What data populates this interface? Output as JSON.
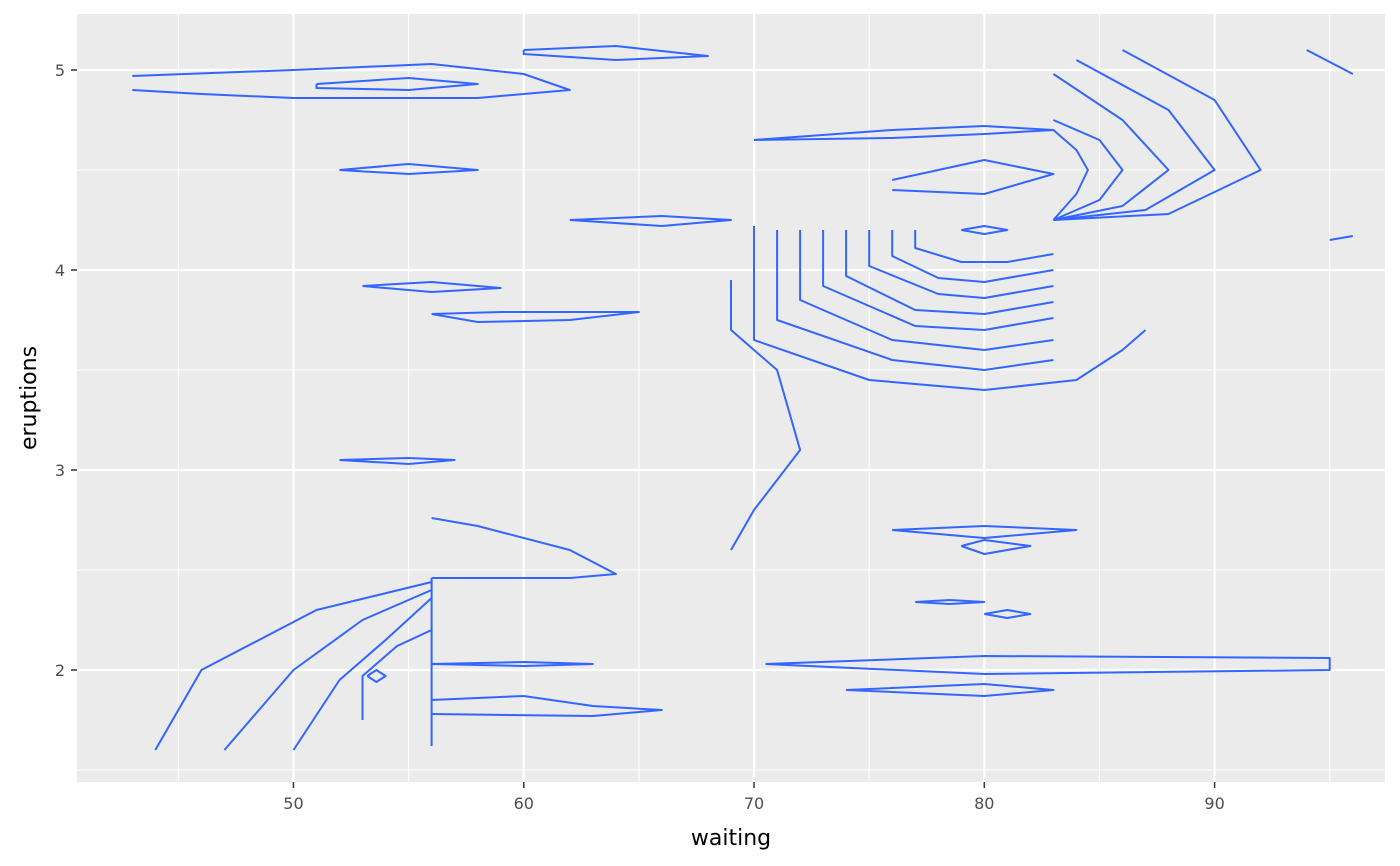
{
  "chart_data": {
    "type": "contour",
    "title": "",
    "xlabel": "waiting",
    "ylabel": "eruptions",
    "xlim": [
      40.6,
      97.4
    ],
    "ylim": [
      1.44,
      5.28
    ],
    "x_ticks": [
      50,
      60,
      70,
      80,
      90
    ],
    "x_tick_labels": [
      "50",
      "60",
      "70",
      "80",
      "90"
    ],
    "y_ticks": [
      2,
      3,
      4,
      5
    ],
    "y_tick_labels": [
      "2",
      "3",
      "4",
      "5"
    ],
    "grid": true,
    "legend": "none",
    "line_color": "#3366FF",
    "panel_background": "#EBEBEB",
    "grid_color": "#FFFFFF",
    "modes": [
      {
        "waiting": 54.5,
        "eruptions": 1.97
      },
      {
        "waiting": 80.0,
        "eruptions": 4.4
      }
    ],
    "series": [
      {
        "points": [
          [
            43,
            4.97
          ],
          [
            50,
            5.0
          ],
          [
            56,
            5.03
          ],
          [
            60,
            4.98
          ],
          [
            62,
            4.9
          ],
          [
            58,
            4.86
          ],
          [
            50,
            4.86
          ],
          [
            46,
            4.88
          ],
          [
            43,
            4.9
          ]
        ]
      },
      {
        "points": [
          [
            51,
            4.93
          ],
          [
            55,
            4.96
          ],
          [
            58,
            4.93
          ],
          [
            55,
            4.9
          ],
          [
            51,
            4.91
          ],
          [
            51,
            4.93
          ]
        ]
      },
      {
        "points": [
          [
            60,
            5.1
          ],
          [
            64,
            5.12
          ],
          [
            68,
            5.07
          ],
          [
            64,
            5.05
          ],
          [
            60,
            5.08
          ],
          [
            60,
            5.1
          ]
        ]
      },
      {
        "points": [
          [
            52,
            4.5
          ],
          [
            55,
            4.53
          ],
          [
            58,
            4.5
          ],
          [
            55,
            4.48
          ],
          [
            52,
            4.5
          ]
        ]
      },
      {
        "points": [
          [
            56,
            3.78
          ],
          [
            59,
            3.79
          ],
          [
            65,
            3.79
          ],
          [
            62,
            3.75
          ],
          [
            58,
            3.74
          ],
          [
            56,
            3.78
          ]
        ]
      },
      {
        "points": [
          [
            53,
            3.92
          ],
          [
            56,
            3.94
          ],
          [
            59,
            3.91
          ],
          [
            56,
            3.89
          ],
          [
            53,
            3.92
          ]
        ]
      },
      {
        "points": [
          [
            62,
            4.25
          ],
          [
            66,
            4.27
          ],
          [
            69,
            4.25
          ],
          [
            66,
            4.22
          ],
          [
            62,
            4.25
          ]
        ]
      },
      {
        "points": [
          [
            56,
            2.46
          ],
          [
            62,
            2.46
          ],
          [
            64,
            2.48
          ],
          [
            62,
            2.6
          ],
          [
            58,
            2.72
          ],
          [
            56,
            2.76
          ]
        ]
      },
      {
        "points": [
          [
            56,
            1.62
          ],
          [
            56,
            2.0
          ],
          [
            56,
            2.46
          ]
        ]
      },
      {
        "points": [
          [
            44,
            1.6
          ],
          [
            46,
            2.0
          ],
          [
            51,
            2.3
          ],
          [
            56,
            2.44
          ]
        ]
      },
      {
        "points": [
          [
            47,
            1.6
          ],
          [
            50,
            2.0
          ],
          [
            53,
            2.25
          ],
          [
            56,
            2.4
          ]
        ]
      },
      {
        "points": [
          [
            50,
            1.6
          ],
          [
            52,
            1.95
          ],
          [
            54,
            2.15
          ],
          [
            56,
            2.36
          ]
        ]
      },
      {
        "points": [
          [
            53,
            1.75
          ],
          [
            53,
            1.97
          ],
          [
            54.5,
            2.12
          ],
          [
            56,
            2.2
          ]
        ]
      },
      {
        "points": [
          [
            53.2,
            1.97
          ],
          [
            53.6,
            2.0
          ],
          [
            54.0,
            1.97
          ],
          [
            53.6,
            1.94
          ],
          [
            53.2,
            1.97
          ]
        ]
      },
      {
        "points": [
          [
            56,
            2.03
          ],
          [
            60,
            2.04
          ],
          [
            63,
            2.03
          ],
          [
            60,
            2.02
          ],
          [
            56,
            2.03
          ]
        ]
      },
      {
        "points": [
          [
            56,
            1.85
          ],
          [
            60,
            1.87
          ],
          [
            63,
            1.82
          ],
          [
            66,
            1.8
          ],
          [
            63,
            1.77
          ],
          [
            56,
            1.78
          ]
        ]
      },
      {
        "points": [
          [
            70.5,
            2.03
          ],
          [
            80,
            2.07
          ],
          [
            95,
            2.06
          ],
          [
            95,
            2.0
          ],
          [
            80,
            1.98
          ],
          [
            70.5,
            2.03
          ]
        ]
      },
      {
        "points": [
          [
            74,
            1.9
          ],
          [
            80,
            1.93
          ],
          [
            83,
            1.9
          ],
          [
            80,
            1.87
          ],
          [
            74,
            1.9
          ]
        ]
      },
      {
        "points": [
          [
            76,
            2.7
          ],
          [
            80,
            2.72
          ],
          [
            84,
            2.7
          ],
          [
            80,
            2.66
          ],
          [
            76,
            2.7
          ]
        ]
      },
      {
        "points": [
          [
            79,
            2.62
          ],
          [
            80,
            2.65
          ],
          [
            82,
            2.62
          ],
          [
            80,
            2.58
          ],
          [
            79,
            2.62
          ]
        ]
      },
      {
        "points": [
          [
            77,
            2.34
          ],
          [
            78.5,
            2.35
          ],
          [
            80,
            2.34
          ],
          [
            78.5,
            2.33
          ],
          [
            77,
            2.34
          ]
        ]
      },
      {
        "points": [
          [
            80,
            2.28
          ],
          [
            81,
            2.3
          ],
          [
            82,
            2.28
          ],
          [
            81,
            2.26
          ],
          [
            80,
            2.28
          ]
        ]
      },
      {
        "points": [
          [
            52,
            3.05
          ],
          [
            55,
            3.06
          ],
          [
            57,
            3.05
          ],
          [
            55,
            3.03
          ],
          [
            52,
            3.05
          ]
        ]
      },
      {
        "points": [
          [
            69,
            3.95
          ],
          [
            69,
            3.7
          ],
          [
            71,
            3.5
          ],
          [
            72,
            3.1
          ],
          [
            70,
            2.8
          ],
          [
            69,
            2.6
          ]
        ]
      },
      {
        "points": [
          [
            70,
            4.22
          ],
          [
            70,
            3.65
          ],
          [
            75,
            3.45
          ],
          [
            80,
            3.4
          ],
          [
            84,
            3.45
          ],
          [
            86,
            3.6
          ],
          [
            87,
            3.7
          ]
        ]
      },
      {
        "points": [
          [
            71,
            4.2
          ],
          [
            71,
            3.75
          ],
          [
            76,
            3.55
          ],
          [
            80,
            3.5
          ],
          [
            83,
            3.55
          ]
        ]
      },
      {
        "points": [
          [
            72,
            4.2
          ],
          [
            72,
            3.85
          ],
          [
            76,
            3.65
          ],
          [
            80,
            3.6
          ],
          [
            83,
            3.65
          ]
        ]
      },
      {
        "points": [
          [
            73,
            4.2
          ],
          [
            73,
            3.92
          ],
          [
            77,
            3.72
          ],
          [
            80,
            3.7
          ],
          [
            83,
            3.76
          ]
        ]
      },
      {
        "points": [
          [
            74,
            4.2
          ],
          [
            74,
            3.97
          ],
          [
            77,
            3.8
          ],
          [
            80,
            3.78
          ],
          [
            83,
            3.84
          ]
        ]
      },
      {
        "points": [
          [
            75,
            4.2
          ],
          [
            75,
            4.02
          ],
          [
            78,
            3.88
          ],
          [
            80,
            3.86
          ],
          [
            83,
            3.92
          ]
        ]
      },
      {
        "points": [
          [
            76,
            4.2
          ],
          [
            76,
            4.07
          ],
          [
            78,
            3.96
          ],
          [
            80,
            3.94
          ],
          [
            83,
            4.0
          ]
        ]
      },
      {
        "points": [
          [
            77,
            4.2
          ],
          [
            77,
            4.11
          ],
          [
            79,
            4.04
          ],
          [
            81,
            4.04
          ],
          [
            83,
            4.08
          ]
        ]
      },
      {
        "points": [
          [
            83,
            4.25
          ],
          [
            86,
            4.32
          ],
          [
            88,
            4.5
          ],
          [
            86,
            4.75
          ],
          [
            83,
            4.98
          ]
        ]
      },
      {
        "points": [
          [
            83,
            4.25
          ],
          [
            87,
            4.3
          ],
          [
            90,
            4.5
          ],
          [
            88,
            4.8
          ],
          [
            84,
            5.05
          ]
        ]
      },
      {
        "points": [
          [
            83,
            4.25
          ],
          [
            88,
            4.28
          ],
          [
            92,
            4.5
          ],
          [
            90,
            4.85
          ],
          [
            86,
            5.1
          ]
        ]
      },
      {
        "points": [
          [
            83,
            4.25
          ],
          [
            85,
            4.35
          ],
          [
            86,
            4.5
          ],
          [
            85,
            4.65
          ],
          [
            83,
            4.75
          ]
        ]
      },
      {
        "points": [
          [
            83,
            4.25
          ],
          [
            84,
            4.38
          ],
          [
            84.5,
            4.5
          ],
          [
            84,
            4.6
          ],
          [
            83,
            4.7
          ]
        ]
      },
      {
        "points": [
          [
            70,
            4.65
          ],
          [
            76,
            4.7
          ],
          [
            80,
            4.72
          ],
          [
            83,
            4.7
          ],
          [
            80,
            4.68
          ],
          [
            76,
            4.66
          ],
          [
            70,
            4.65
          ]
        ]
      },
      {
        "points": [
          [
            76,
            4.45
          ],
          [
            80,
            4.55
          ],
          [
            83,
            4.48
          ],
          [
            80,
            4.38
          ],
          [
            76,
            4.4
          ]
        ]
      },
      {
        "points": [
          [
            79,
            4.2
          ],
          [
            80,
            4.22
          ],
          [
            81,
            4.2
          ],
          [
            80,
            4.18
          ],
          [
            79,
            4.2
          ]
        ]
      },
      {
        "points": [
          [
            94,
            5.1
          ],
          [
            96,
            4.98
          ]
        ]
      },
      {
        "points": [
          [
            95,
            4.15
          ],
          [
            96,
            4.17
          ]
        ]
      }
    ]
  }
}
